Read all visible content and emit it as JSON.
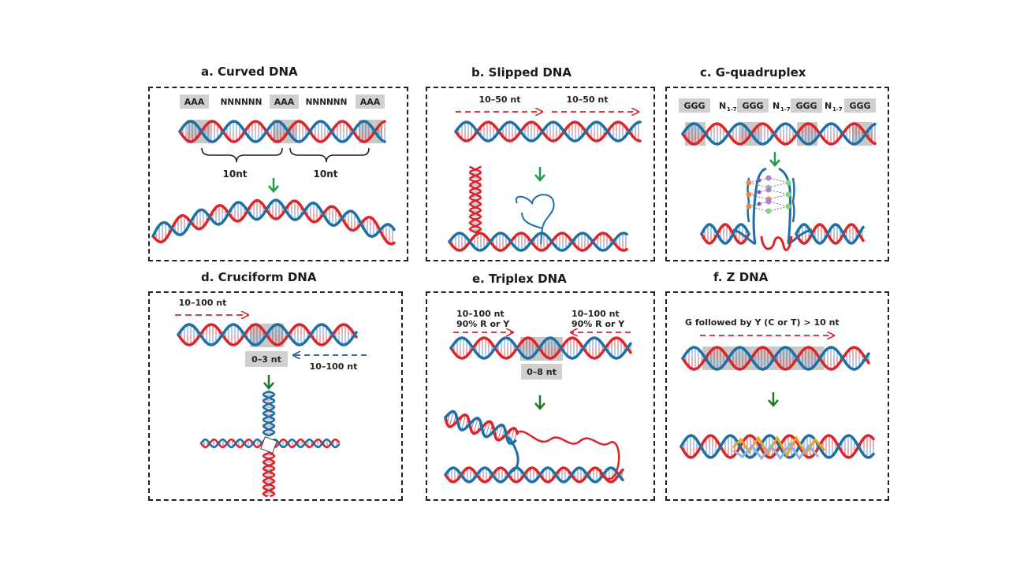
{
  "titles": {
    "a": "a. Curved DNA",
    "b": "b. Slipped DNA",
    "c": "c. G-quadruplex",
    "d": "d. Cruciform DNA",
    "e": "e. Triplex DNA",
    "f": "f. Z DNA"
  },
  "panel_a": {
    "box1": "AAA",
    "sep1": "NNNNNN",
    "box2": "AAA",
    "sep2": "NNNNNN",
    "box3": "AAA",
    "brace1": "10nt",
    "brace2": "10nt"
  },
  "panel_b": {
    "arrow1": "10–50 nt",
    "arrow2": "10–50 nt"
  },
  "panel_c": {
    "g1": "GGG",
    "n1": "N",
    "g2": "GGG",
    "n2": "N",
    "g3": "GGG",
    "n3": "N",
    "g4": "GGG",
    "sub": "1-7"
  },
  "panel_d": {
    "arrow1": "10–100 nt",
    "box": "0–3 nt",
    "arrow2": "10–100 nt"
  },
  "panel_e": {
    "left_a": "10–100 nt",
    "left_b": "90%  R or Y",
    "right_a": "10–100 nt",
    "right_b": "90%  R or Y",
    "box": "0–8 nt"
  },
  "panel_f": {
    "label": "G followed by Y (C or T) > 10 nt"
  },
  "colors": {
    "strand_red": "#d7262c",
    "strand_blue": "#1f6fa3",
    "arrow_green": "#1e9e4a",
    "highlight_gray": "#c8c8c8"
  }
}
